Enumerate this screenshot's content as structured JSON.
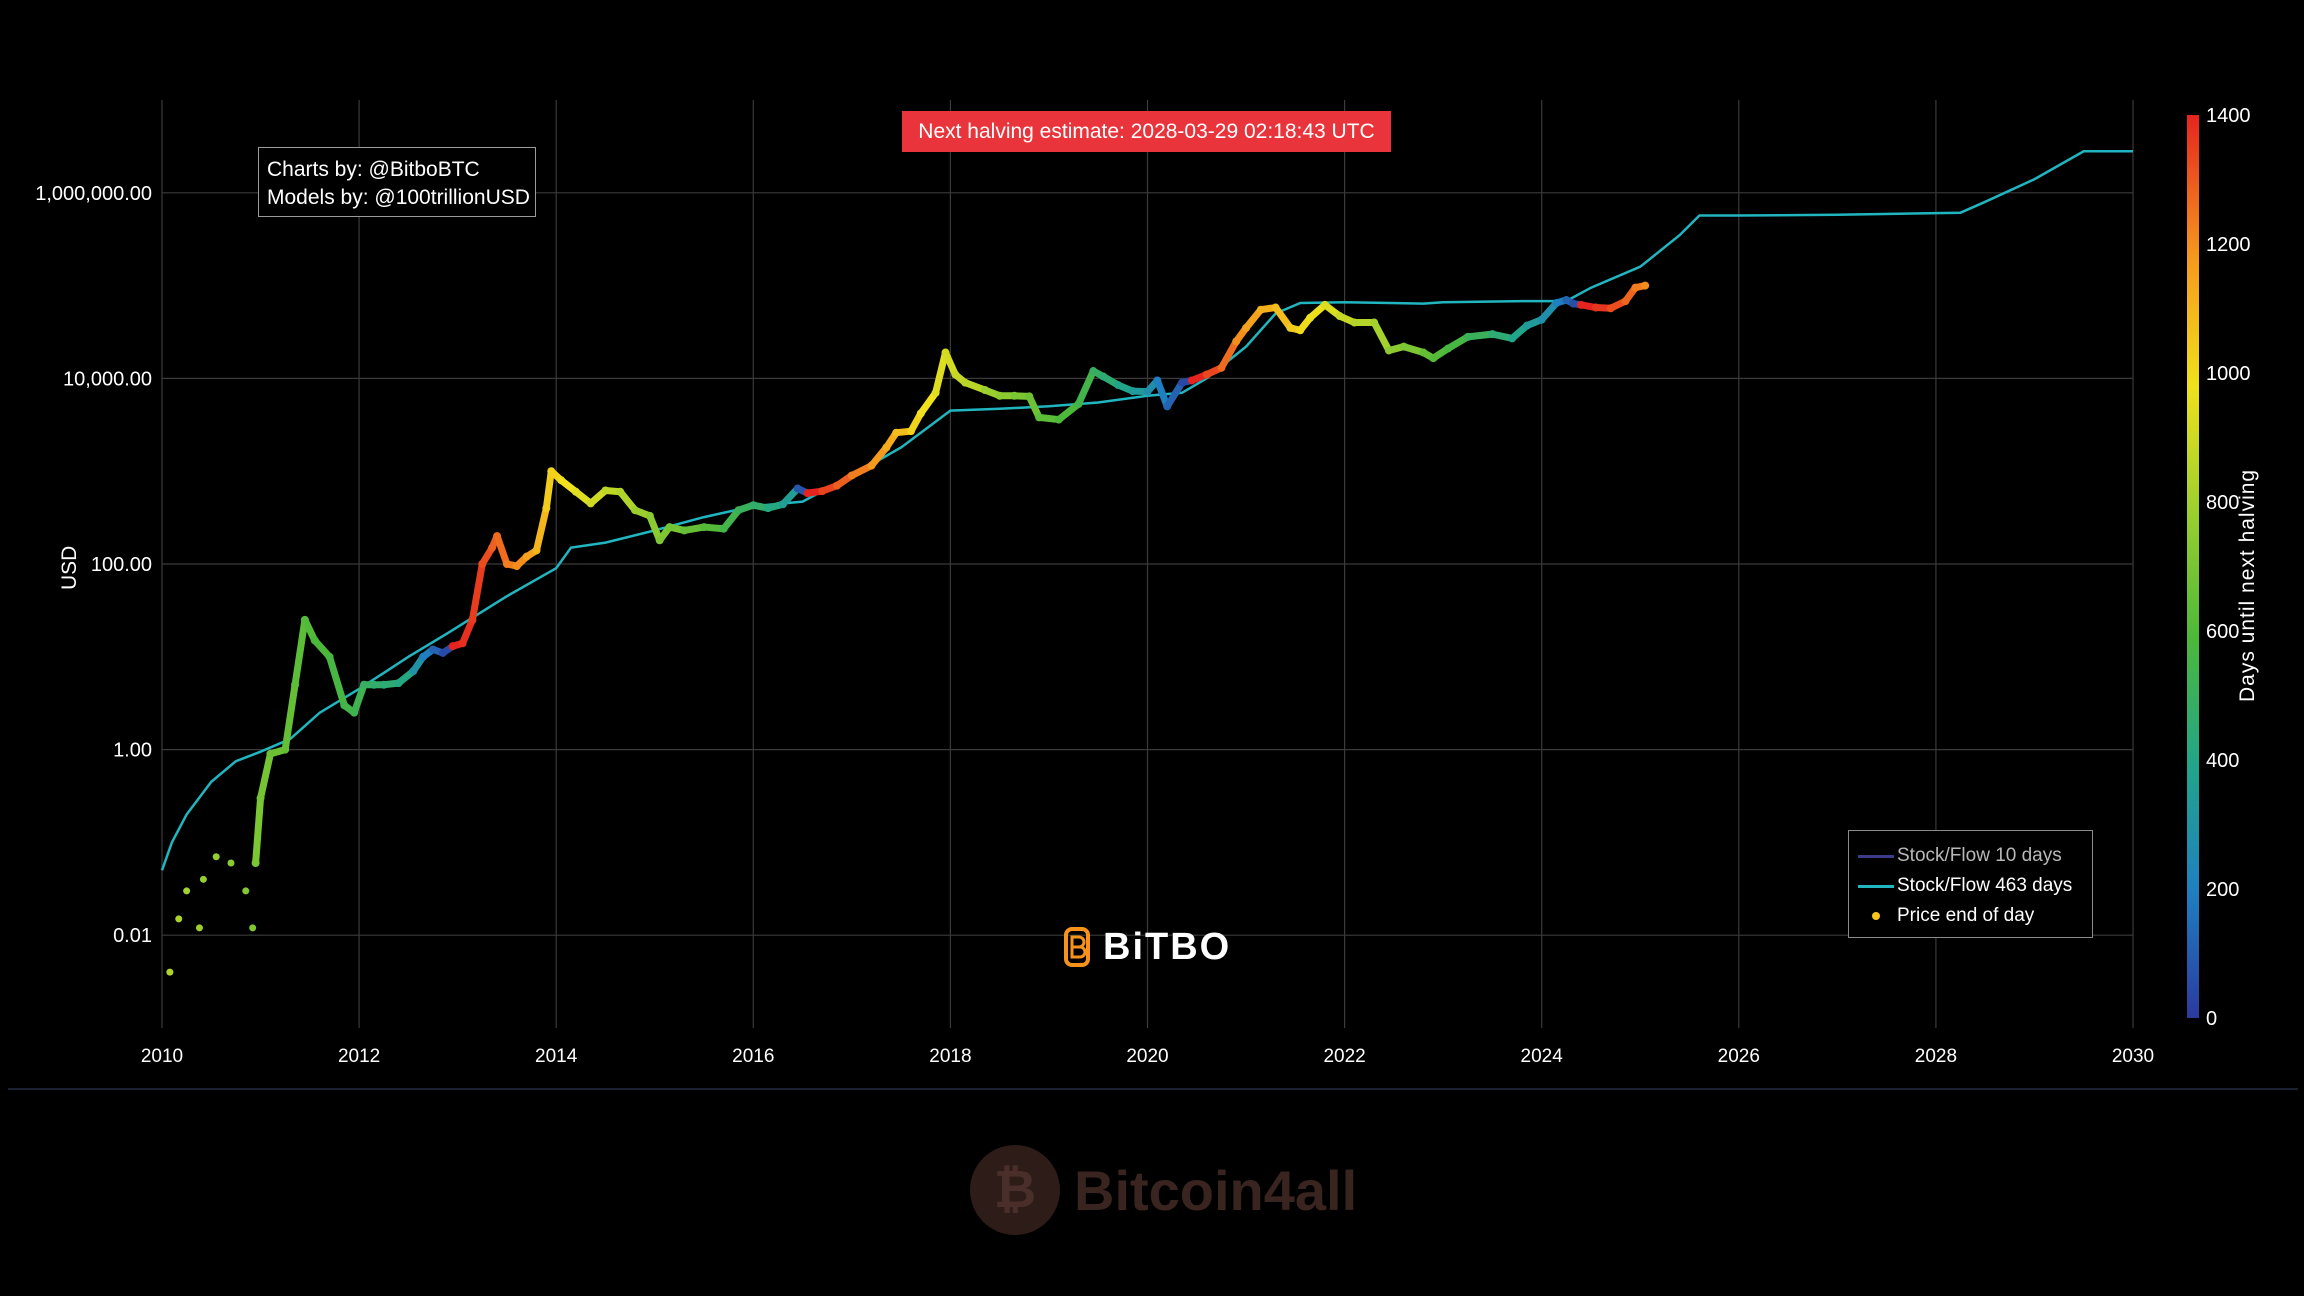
{
  "banner": {
    "text": "Next halving estimate: 2028-03-29 02:18:43 UTC",
    "color": "#e8343a"
  },
  "credits": {
    "line1": "Charts by: @BitboBTC",
    "line2": "Models by: @100trillionUSD"
  },
  "logo": {
    "text": "BiTBO",
    "accent": "#f7931a"
  },
  "watermark": {
    "text": "Bitcoin4all"
  },
  "colorbar": {
    "title": "Days until next halving",
    "ticks": [
      "0",
      "200",
      "400",
      "600",
      "800",
      "1000",
      "1200",
      "1400"
    ]
  },
  "legend": {
    "items": [
      {
        "label": "Stock/Flow 10 days",
        "color": "#3b3b8a",
        "kind": "line"
      },
      {
        "label": "Stock/Flow 463 days",
        "color": "#21b5c0",
        "kind": "line"
      },
      {
        "label": "Price end of day",
        "color": "#f7c51a",
        "kind": "dot"
      }
    ]
  },
  "chart_data": {
    "type": "scatter",
    "title": "",
    "xlabel": "",
    "ylabel": "USD",
    "yscale": "log",
    "ylim": [
      0.001,
      10000000
    ],
    "xlim": [
      2010,
      2030
    ],
    "x_ticks": [
      "2010",
      "2012",
      "2014",
      "2016",
      "2018",
      "2020",
      "2022",
      "2024",
      "2026",
      "2028",
      "2030"
    ],
    "y_ticks": [
      {
        "value": 0.01,
        "label": "0.01"
      },
      {
        "value": 1,
        "label": "1.00"
      },
      {
        "value": 100,
        "label": "100.00"
      },
      {
        "value": 10000,
        "label": "10,000.00"
      },
      {
        "value": 1000000,
        "label": "1,000,000.00"
      }
    ],
    "grid": true,
    "series": [
      {
        "name": "Stock/Flow 463 days",
        "color": "#21b5c0",
        "points": [
          [
            2010.0,
            0.05
          ],
          [
            2010.1,
            0.1
          ],
          [
            2010.25,
            0.2
          ],
          [
            2010.5,
            0.45
          ],
          [
            2010.75,
            0.75
          ],
          [
            2011.0,
            0.95
          ],
          [
            2011.3,
            1.3
          ],
          [
            2011.6,
            2.5
          ],
          [
            2012.0,
            4.5
          ],
          [
            2012.5,
            10
          ],
          [
            2012.9,
            18
          ],
          [
            2013.5,
            45
          ],
          [
            2014.0,
            90
          ],
          [
            2014.15,
            150
          ],
          [
            2014.5,
            170
          ],
          [
            2015.0,
            230
          ],
          [
            2015.5,
            320
          ],
          [
            2016.0,
            420
          ],
          [
            2016.5,
            470
          ],
          [
            2017.0,
            900
          ],
          [
            2017.5,
            1800
          ],
          [
            2018.0,
            4500
          ],
          [
            2018.5,
            4700
          ],
          [
            2019.0,
            5000
          ],
          [
            2019.5,
            5500
          ],
          [
            2020.0,
            6500
          ],
          [
            2020.35,
            7000
          ],
          [
            2020.6,
            10000
          ],
          [
            2021.0,
            22000
          ],
          [
            2021.3,
            50000
          ],
          [
            2021.55,
            65000
          ],
          [
            2022.0,
            66000
          ],
          [
            2022.8,
            64000
          ],
          [
            2023.0,
            66000
          ],
          [
            2023.8,
            68000
          ],
          [
            2024.25,
            68000
          ],
          [
            2024.5,
            95000
          ],
          [
            2025.0,
            160000
          ],
          [
            2025.4,
            350000
          ],
          [
            2025.6,
            570000
          ],
          [
            2026.0,
            570000
          ],
          [
            2027.0,
            580000
          ],
          [
            2028.25,
            610000
          ],
          [
            2028.5,
            800000
          ],
          [
            2029.0,
            1400000
          ],
          [
            2029.5,
            2800000
          ],
          [
            2030.0,
            2800000
          ]
        ]
      },
      {
        "name": "Price end of day",
        "color": "#f7c51a",
        "colored_by": "Days until next halving",
        "points": [
          [
            2010.08,
            0.004,
            850
          ],
          [
            2010.17,
            0.015,
            840
          ],
          [
            2010.25,
            0.03,
            820
          ],
          [
            2010.38,
            0.012,
            800
          ],
          [
            2010.42,
            0.04,
            790
          ],
          [
            2010.55,
            0.07,
            780
          ],
          [
            2010.7,
            0.06,
            760
          ],
          [
            2010.85,
            0.03,
            740
          ],
          [
            2010.92,
            0.012,
            730
          ],
          [
            2010.95,
            0.06,
            720
          ],
          [
            2011.0,
            0.3,
            700
          ],
          [
            2011.1,
            0.9,
            680
          ],
          [
            2011.25,
            1.0,
            660
          ],
          [
            2011.35,
            5,
            640
          ],
          [
            2011.45,
            25,
            620
          ],
          [
            2011.55,
            15,
            600
          ],
          [
            2011.7,
            10,
            580
          ],
          [
            2011.85,
            3,
            560
          ],
          [
            2011.95,
            2.5,
            540
          ],
          [
            2012.05,
            5,
            500
          ],
          [
            2012.15,
            5,
            480
          ],
          [
            2012.25,
            5,
            460
          ],
          [
            2012.4,
            5.2,
            420
          ],
          [
            2012.55,
            7,
            300
          ],
          [
            2012.65,
            10,
            200
          ],
          [
            2012.75,
            12,
            120
          ],
          [
            2012.85,
            11,
            50
          ],
          [
            2012.95,
            13,
            1400
          ],
          [
            2013.05,
            14,
            1380
          ],
          [
            2013.15,
            25,
            1360
          ],
          [
            2013.25,
            100,
            1330
          ],
          [
            2013.35,
            150,
            1300
          ],
          [
            2013.4,
            200,
            1280
          ],
          [
            2013.5,
            100,
            1250
          ],
          [
            2013.6,
            95,
            1220
          ],
          [
            2013.7,
            120,
            1180
          ],
          [
            2013.8,
            140,
            1120
          ],
          [
            2013.9,
            400,
            1060
          ],
          [
            2013.95,
            1000,
            1040
          ],
          [
            2014.05,
            800,
            1000
          ],
          [
            2014.2,
            600,
            960
          ],
          [
            2014.35,
            450,
            920
          ],
          [
            2014.5,
            620,
            880
          ],
          [
            2014.65,
            600,
            850
          ],
          [
            2014.8,
            380,
            800
          ],
          [
            2014.95,
            330,
            760
          ],
          [
            2015.05,
            180,
            730
          ],
          [
            2015.15,
            250,
            700
          ],
          [
            2015.3,
            230,
            660
          ],
          [
            2015.5,
            250,
            620
          ],
          [
            2015.7,
            240,
            560
          ],
          [
            2015.85,
            380,
            520
          ],
          [
            2016.0,
            430,
            480
          ],
          [
            2016.15,
            400,
            420
          ],
          [
            2016.3,
            440,
            360
          ],
          [
            2016.45,
            650,
            80
          ],
          [
            2016.55,
            580,
            1400
          ],
          [
            2016.7,
            610,
            1350
          ],
          [
            2016.85,
            700,
            1300
          ],
          [
            2017.0,
            900,
            1250
          ],
          [
            2017.2,
            1150,
            1200
          ],
          [
            2017.35,
            1800,
            1150
          ],
          [
            2017.45,
            2600,
            1100
          ],
          [
            2017.6,
            2700,
            1040
          ],
          [
            2017.7,
            4200,
            1000
          ],
          [
            2017.85,
            7000,
            960
          ],
          [
            2017.95,
            19000,
            930
          ],
          [
            2018.05,
            11000,
            900
          ],
          [
            2018.15,
            9000,
            870
          ],
          [
            2018.35,
            7500,
            800
          ],
          [
            2018.5,
            6500,
            760
          ],
          [
            2018.65,
            6500,
            720
          ],
          [
            2018.8,
            6400,
            680
          ],
          [
            2018.9,
            3800,
            640
          ],
          [
            2019.1,
            3600,
            600
          ],
          [
            2019.3,
            5300,
            560
          ],
          [
            2019.45,
            12000,
            500
          ],
          [
            2019.55,
            10500,
            460
          ],
          [
            2019.7,
            8500,
            400
          ],
          [
            2019.85,
            7300,
            340
          ],
          [
            2020.0,
            7200,
            280
          ],
          [
            2020.1,
            9500,
            200
          ],
          [
            2020.2,
            5000,
            120
          ],
          [
            2020.35,
            9000,
            40
          ],
          [
            2020.45,
            9500,
            1400
          ],
          [
            2020.6,
            11000,
            1340
          ],
          [
            2020.75,
            13000,
            1280
          ],
          [
            2020.9,
            25000,
            1220
          ],
          [
            2021.0,
            35000,
            1180
          ],
          [
            2021.15,
            55000,
            1140
          ],
          [
            2021.3,
            58000,
            1100
          ],
          [
            2021.45,
            35000,
            1060
          ],
          [
            2021.55,
            33000,
            1020
          ],
          [
            2021.65,
            45000,
            990
          ],
          [
            2021.8,
            62000,
            950
          ],
          [
            2021.95,
            47000,
            900
          ],
          [
            2022.1,
            40000,
            860
          ],
          [
            2022.3,
            40000,
            820
          ],
          [
            2022.45,
            20000,
            760
          ],
          [
            2022.6,
            22000,
            720
          ],
          [
            2022.8,
            19000,
            660
          ],
          [
            2022.9,
            16500,
            620
          ],
          [
            2023.05,
            21000,
            580
          ],
          [
            2023.25,
            28000,
            520
          ],
          [
            2023.5,
            30000,
            460
          ],
          [
            2023.7,
            27000,
            400
          ],
          [
            2023.85,
            37000,
            340
          ],
          [
            2024.0,
            43000,
            280
          ],
          [
            2024.15,
            65000,
            200
          ],
          [
            2024.25,
            70000,
            120
          ],
          [
            2024.32,
            64000,
            60
          ],
          [
            2024.4,
            62000,
            1400
          ],
          [
            2024.55,
            58000,
            1370
          ],
          [
            2024.7,
            57000,
            1330
          ],
          [
            2024.85,
            68000,
            1290
          ],
          [
            2024.95,
            95000,
            1250
          ],
          [
            2025.05,
            100000,
            1220
          ]
        ]
      }
    ]
  }
}
